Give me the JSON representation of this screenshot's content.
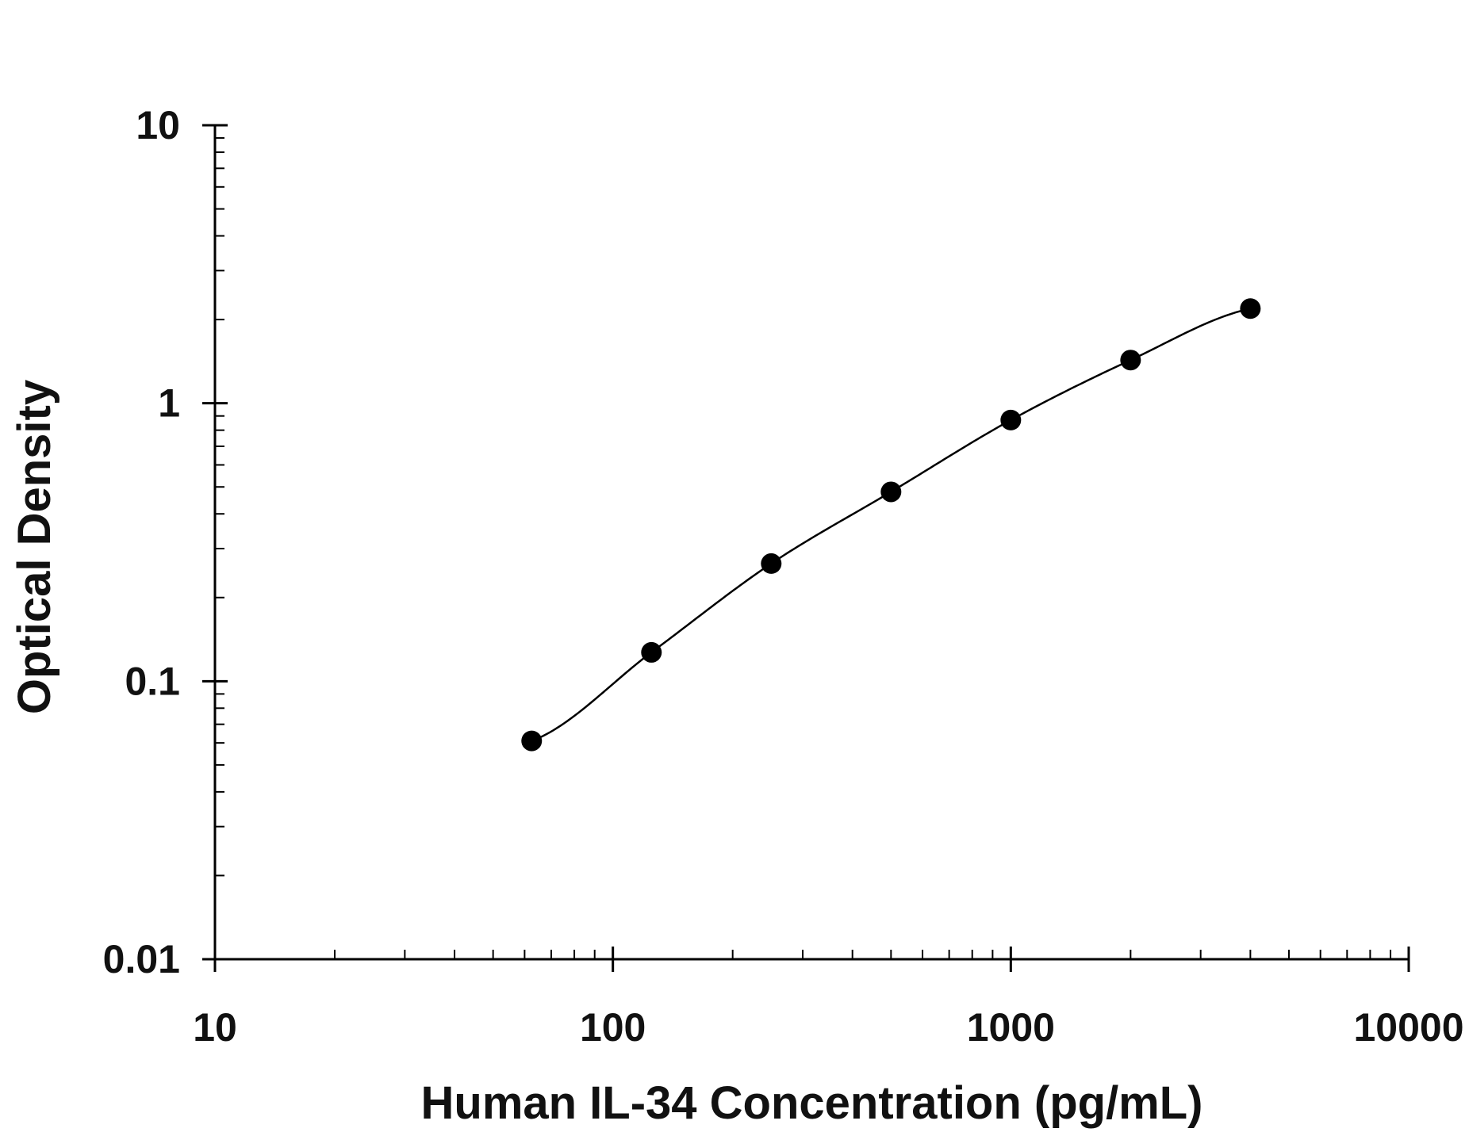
{
  "chart_data": {
    "type": "scatter",
    "title": "",
    "xlabel": "Human IL-34 Concentration (pg/mL)",
    "ylabel": "Optical Density",
    "x_scale": "log",
    "y_scale": "log",
    "xlim": [
      10,
      10000
    ],
    "ylim": [
      0.01,
      10
    ],
    "x_ticks": [
      10,
      100,
      1000,
      10000
    ],
    "x_tick_labels": [
      "10",
      "100",
      "1000",
      "10000"
    ],
    "y_ticks": [
      0.01,
      0.1,
      1,
      10
    ],
    "y_tick_labels": [
      "0.01",
      "0.1",
      "1",
      "10"
    ],
    "grid": false,
    "legend": false,
    "series": [
      {
        "x": [
          62.5,
          125,
          250,
          500,
          1000,
          2000,
          4000
        ],
        "y": [
          0.061,
          0.127,
          0.265,
          0.48,
          0.87,
          1.43,
          2.19
        ],
        "marker": "filled-circle",
        "fit_line": "smooth-curve",
        "color": "#000000"
      }
    ]
  }
}
